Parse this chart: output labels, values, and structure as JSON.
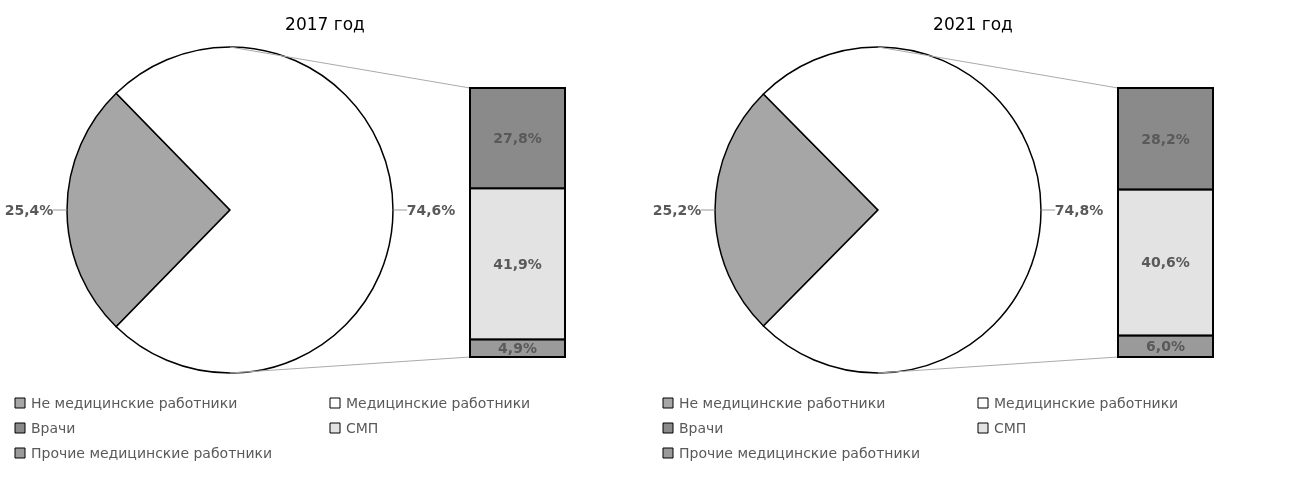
{
  "chart_data": [
    {
      "type": "pie",
      "title": "2017 год",
      "categories": [
        "Не медицинские работники",
        "Медицинские работники"
      ],
      "values": [
        25.4,
        74.6
      ],
      "colors": [
        "#a6a6a6",
        "#ffffff"
      ],
      "value_labels": [
        "25,4%",
        "74,6%"
      ],
      "legend": "bottom"
    },
    {
      "type": "bar",
      "stacked": true,
      "categories": [
        null
      ],
      "legend": "bottom",
      "series": [
        {
          "name": "Прочие медицинские работники",
          "color": "#9a9a9a",
          "values": [
            4.9
          ],
          "value_labels": [
            "4,9%"
          ]
        },
        {
          "name": "СМП",
          "color": "#e3e3e3",
          "values": [
            41.9
          ],
          "value_labels": [
            "41,9%"
          ]
        },
        {
          "name": "Врачи",
          "color": "#8a8a8a",
          "values": [
            27.8
          ],
          "value_labels": [
            "27,8%"
          ]
        }
      ]
    },
    {
      "type": "pie",
      "title": "2021 год",
      "categories": [
        "Не медицинские работники",
        "Медицинские работники"
      ],
      "values": [
        25.2,
        74.8
      ],
      "colors": [
        "#a6a6a6",
        "#ffffff"
      ],
      "value_labels": [
        "25,2%",
        "74,8%"
      ],
      "legend": "bottom"
    },
    {
      "type": "bar",
      "stacked": true,
      "categories": [
        null
      ],
      "legend": "bottom",
      "series": [
        {
          "name": "Прочие медицинские работники",
          "color": "#9a9a9a",
          "values": [
            6.0
          ],
          "value_labels": [
            "6,0%"
          ]
        },
        {
          "name": "СМП",
          "color": "#e3e3e3",
          "values": [
            40.6
          ],
          "value_labels": [
            "40,6%"
          ]
        },
        {
          "name": "Врачи",
          "color": "#8a8a8a",
          "values": [
            28.2
          ],
          "value_labels": [
            "28,2%"
          ]
        }
      ]
    }
  ]
}
